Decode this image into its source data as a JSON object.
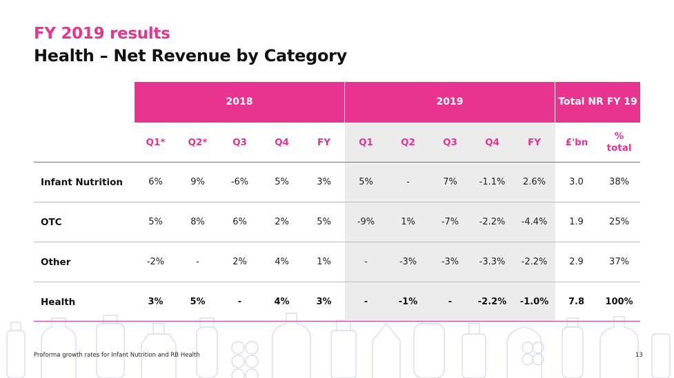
{
  "slide": {
    "title": "FY 2019 results",
    "subtitle": "Health – Net Revenue by Category",
    "footnote": "Proforma growth rates for Infant Nutrition and RB Health",
    "page_number": "13"
  },
  "colors": {
    "accent": "#e8338f",
    "shade": "#ececec",
    "rule": "#bbbbbb"
  },
  "table": {
    "groups": [
      {
        "label": "2018"
      },
      {
        "label": "2019"
      },
      {
        "label": "Total NR FY 19"
      }
    ],
    "columns": [
      "Q1*",
      "Q2*",
      "Q3",
      "Q4",
      "FY",
      "Q1",
      "Q2",
      "Q3",
      "Q4",
      "FY",
      "£'bn",
      "% total"
    ],
    "rows": [
      {
        "label": "Infant Nutrition",
        "bold": false,
        "cells": [
          "6%",
          "9%",
          "-6%",
          "5%",
          "3%",
          "5%",
          "-",
          "7%",
          "-1.1%",
          "2.6%",
          "3.0",
          "38%"
        ]
      },
      {
        "label": "OTC",
        "bold": false,
        "cells": [
          "5%",
          "8%",
          "6%",
          "2%",
          "5%",
          "-9%",
          "1%",
          "-7%",
          "-2.2%",
          "-4.4%",
          "1.9",
          "25%"
        ]
      },
      {
        "label": "Other",
        "bold": false,
        "cells": [
          "-2%",
          "-",
          "2%",
          "4%",
          "1%",
          "-",
          "-3%",
          "-3%",
          "-3.3%",
          "-2.2%",
          "2.9",
          "37%"
        ]
      },
      {
        "label": "Health",
        "bold": true,
        "cells": [
          "3%",
          "5%",
          "-",
          "4%",
          "3%",
          "-",
          "-1%",
          "-",
          "-2.2%",
          "-1.0%",
          "7.8",
          "100%"
        ]
      }
    ]
  }
}
